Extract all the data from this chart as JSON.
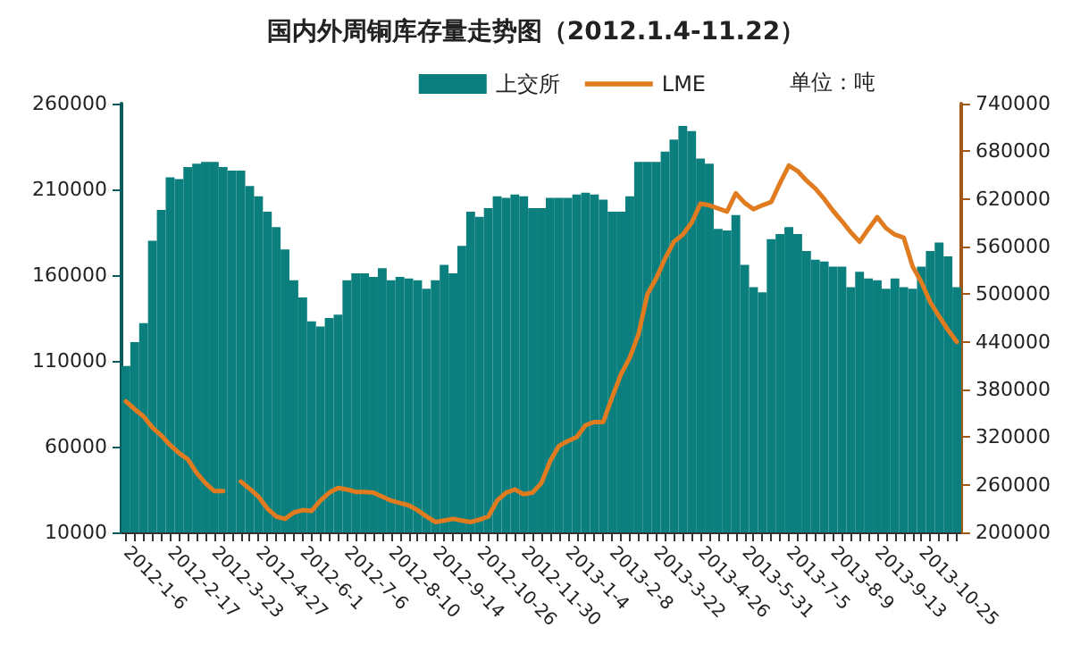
{
  "chart_data": {
    "type": "bar",
    "title": "国内外周铜库存量走势图（2012.1.4-11.22）",
    "annotations": [
      "单位：吨"
    ],
    "categories": [
      "2012-1-6",
      null,
      null,
      null,
      null,
      "2012-2-17",
      null,
      null,
      null,
      null,
      "2012-3-23",
      null,
      null,
      null,
      null,
      "2012-4-27",
      null,
      null,
      null,
      null,
      "2012-6-1",
      null,
      null,
      null,
      null,
      "2012-7-6",
      null,
      null,
      null,
      null,
      "2012-8-10",
      null,
      null,
      null,
      null,
      "2012-9-14",
      null,
      null,
      null,
      null,
      "2012-10-26",
      null,
      null,
      null,
      null,
      "2012-11-30",
      null,
      null,
      null,
      null,
      "2013-1-4",
      null,
      null,
      null,
      null,
      "2013-2-8",
      null,
      null,
      null,
      null,
      "2013-3-22",
      null,
      null,
      null,
      null,
      "2013-4-26",
      null,
      null,
      null,
      null,
      "2013-5-31",
      null,
      null,
      null,
      null,
      "2013-7-5",
      null,
      null,
      null,
      null,
      "2013-8-9",
      null,
      null,
      null,
      null,
      "2013-9-13",
      null,
      null,
      null,
      null,
      "2013-10-25",
      null,
      null,
      null,
      null
    ],
    "series": [
      {
        "name": "上交所",
        "color": "#0b7f7d",
        "values": [
          107000,
          121000,
          132000,
          180000,
          198000,
          217000,
          216000,
          223000,
          225000,
          226000,
          226000,
          223000,
          221000,
          221000,
          212000,
          206000,
          197000,
          188000,
          175000,
          157000,
          147000,
          133000,
          130000,
          135000,
          137000,
          157000,
          161000,
          161000,
          159000,
          164000,
          157000,
          159000,
          158000,
          157000,
          152000,
          157000,
          166000,
          161000,
          177000,
          197000,
          194000,
          199000,
          206000,
          205000,
          207000,
          206000,
          199000,
          199000,
          205000,
          205000,
          205000,
          207000,
          208000,
          207000,
          204000,
          197000,
          197000,
          206000,
          226000,
          226000,
          226000,
          232000,
          239000,
          247000,
          244000,
          228000,
          225000,
          187000,
          186000,
          195000,
          166000,
          153000,
          150000,
          181000,
          184000,
          188000,
          184000,
          174000,
          169000,
          168000,
          165000,
          165000,
          153000,
          162000,
          158000,
          157000,
          152000,
          158000,
          153000,
          152000,
          165000,
          174000,
          179000,
          171000,
          153000
        ]
      },
      {
        "name": "LME",
        "type": "line",
        "axis": "y2",
        "color": "#e07b20",
        "values": [
          365000,
          355000,
          346000,
          332000,
          322000,
          310000,
          300000,
          292000,
          275000,
          262000,
          252000,
          252000,
          null,
          264000,
          255000,
          245000,
          230000,
          220000,
          217000,
          225000,
          228000,
          227000,
          240000,
          250000,
          256000,
          254000,
          251000,
          251000,
          250000,
          245000,
          240000,
          237000,
          234000,
          228000,
          220000,
          213000,
          215000,
          217000,
          215000,
          213000,
          216000,
          220000,
          240000,
          250000,
          254000,
          248000,
          250000,
          262000,
          290000,
          309000,
          315000,
          320000,
          335000,
          339000,
          339000,
          370000,
          399000,
          420000,
          450000,
          500000,
          520000,
          545000,
          566000,
          575000,
          590000,
          614000,
          612000,
          608000,
          604000,
          627000,
          615000,
          607000,
          612000,
          616000,
          640000,
          662000,
          655000,
          643000,
          633000,
          620000,
          605000,
          592000,
          578000,
          566000,
          582000,
          597000,
          583000,
          575000,
          571000,
          535000,
          515000,
          490000,
          472000,
          455000,
          440000
        ]
      }
    ],
    "ylim": [
      10000,
      260000
    ],
    "yticks": [
      10000,
      60000,
      110000,
      160000,
      210000,
      260000
    ],
    "y2lim": [
      200000,
      740000
    ],
    "y2ticks": [
      200000,
      260000,
      320000,
      380000,
      440000,
      500000,
      560000,
      620000,
      680000,
      740000
    ],
    "grid": false,
    "legend": "top",
    "marker": "none",
    "line_style": "solid"
  }
}
